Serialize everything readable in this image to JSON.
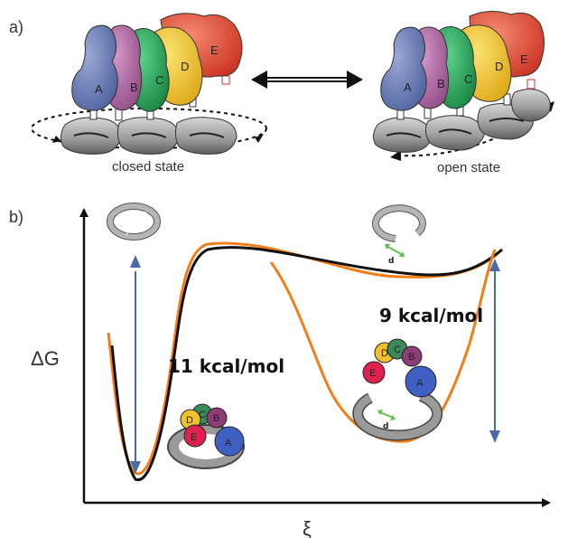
{
  "panel_a": {
    "label": "a)",
    "closed_caption": "closed state",
    "open_caption": "open state",
    "subunits": [
      "A",
      "B",
      "C",
      "D",
      "E"
    ]
  },
  "panel_b": {
    "label": "b)",
    "y_axis_label": "ΔG",
    "x_axis_label": "ξ",
    "closed_barrier": "11 kcal/mol",
    "open_barrier": "9 kcal/mol",
    "ring_gap_label": "d",
    "subunits": [
      "A",
      "B",
      "C",
      "D",
      "E"
    ]
  },
  "colors": {
    "A": "#6a7fb6",
    "B": "#b46aa6",
    "C": "#2aa35b",
    "D": "#f2c234",
    "E": "#e5483a",
    "E_small": "#e0204e",
    "small_A": "#3f5fc2",
    "small_B": "#8c3d76",
    "small_C": "#3c8a5c",
    "small_D": "#f0c22e",
    "curve_black": "#111111",
    "curve_orange": "#f07f1a",
    "arrow_blue": "#4a6aa8",
    "gap_arrow": "#5cc24a"
  }
}
